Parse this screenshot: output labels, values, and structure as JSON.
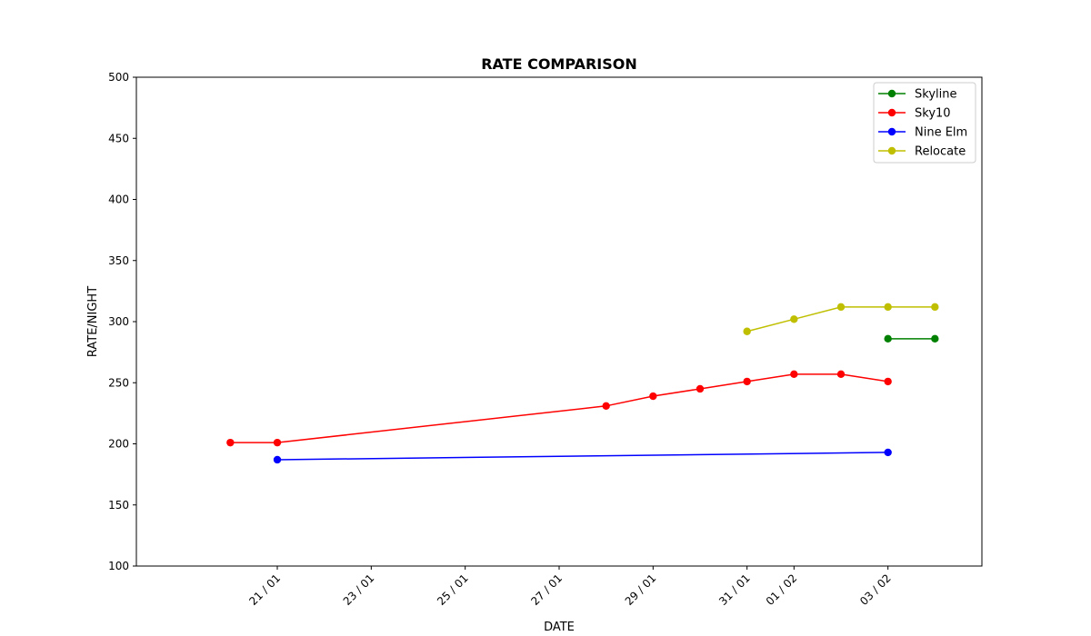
{
  "chart_data": {
    "type": "line",
    "title": "RATE COMPARISON",
    "xlabel": "DATE",
    "ylabel": "RATE/NIGHT",
    "ylim": [
      100,
      500
    ],
    "yticks": [
      100,
      150,
      200,
      250,
      300,
      350,
      400,
      450,
      500
    ],
    "xlim": [
      "2024-01-18",
      "2024-02-05"
    ],
    "xticks": [
      {
        "date": "2024-01-21",
        "label": "21 / 01"
      },
      {
        "date": "2024-01-23",
        "label": "23 / 01"
      },
      {
        "date": "2024-01-25",
        "label": "25 / 01"
      },
      {
        "date": "2024-01-27",
        "label": "27 / 01"
      },
      {
        "date": "2024-01-29",
        "label": "29 / 01"
      },
      {
        "date": "2024-01-31",
        "label": "31 / 01"
      },
      {
        "date": "2024-02-01",
        "label": "01 / 02"
      },
      {
        "date": "2024-02-03",
        "label": "03 / 02"
      }
    ],
    "grid": false,
    "legend_position": "top-right",
    "series": [
      {
        "name": "Skyline",
        "color": "#008000",
        "marker": "circle",
        "points": [
          {
            "x": "2024-02-03",
            "y": 286
          },
          {
            "x": "2024-02-04",
            "y": 286
          }
        ]
      },
      {
        "name": "Sky10",
        "color": "#ff0000",
        "marker": "circle",
        "points": [
          {
            "x": "2024-01-20",
            "y": 201
          },
          {
            "x": "2024-01-21",
            "y": 201
          },
          {
            "x": "2024-01-28",
            "y": 231
          },
          {
            "x": "2024-01-29",
            "y": 239
          },
          {
            "x": "2024-01-30",
            "y": 245
          },
          {
            "x": "2024-01-31",
            "y": 251
          },
          {
            "x": "2024-02-01",
            "y": 257
          },
          {
            "x": "2024-02-02",
            "y": 257
          },
          {
            "x": "2024-02-03",
            "y": 251
          }
        ]
      },
      {
        "name": "Nine Elm",
        "color": "#0000ff",
        "marker": "circle",
        "points": [
          {
            "x": "2024-01-21",
            "y": 187
          },
          {
            "x": "2024-02-03",
            "y": 193
          }
        ]
      },
      {
        "name": "Relocate",
        "color": "#bfbf00",
        "marker": "circle",
        "points": [
          {
            "x": "2024-01-31",
            "y": 292
          },
          {
            "x": "2024-02-01",
            "y": 302
          },
          {
            "x": "2024-02-02",
            "y": 312
          },
          {
            "x": "2024-02-03",
            "y": 312
          },
          {
            "x": "2024-02-04",
            "y": 312
          }
        ]
      }
    ]
  }
}
